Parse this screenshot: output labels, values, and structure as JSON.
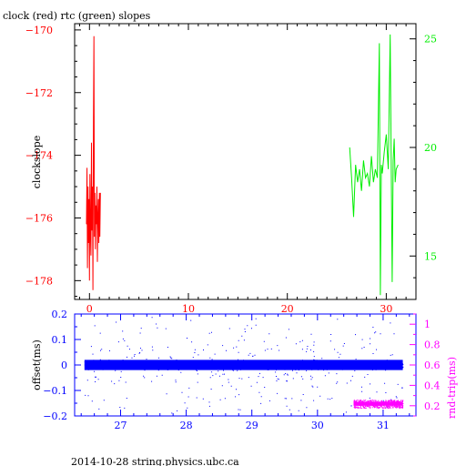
{
  "title": "clock (red) rtc (green) slopes",
  "footer": "2014-10-28 string.physics.ubc.ca",
  "colors": {
    "red": "#ff0000",
    "green": "#00ee00",
    "blue": "#0000ff",
    "magenta": "#ff00ff",
    "black": "#000000"
  },
  "chart_data": [
    {
      "type": "line",
      "ylabel": "clockslope",
      "xlim": [
        -1.5,
        33
      ],
      "ylim": [
        -178.6,
        -169.8
      ],
      "xticks": [
        0,
        10,
        20,
        30
      ],
      "yticks_left": [
        -170,
        -172,
        -174,
        -176,
        -178
      ],
      "right_axis": {
        "ylim": [
          13,
          25.7
        ],
        "yticks": [
          15,
          20,
          25
        ]
      },
      "series": [
        {
          "color": "red",
          "axis": "left",
          "x": [
            -0.3,
            -0.25,
            -0.2,
            -0.15,
            -0.1,
            -0.05,
            0.0,
            0.05,
            0.1,
            0.15,
            0.2,
            0.25,
            0.3,
            0.35,
            0.4,
            0.45,
            0.5,
            0.55,
            0.6,
            0.65,
            0.7,
            0.75,
            0.8,
            0.85,
            0.9,
            0.95,
            1.0,
            1.05,
            1.1
          ],
          "y": [
            -176.2,
            -174.4,
            -177.6,
            -175.0,
            -176.8,
            -175.4,
            -178.0,
            -174.6,
            -176.6,
            -177.2,
            -173.6,
            -176.4,
            -175.0,
            -178.3,
            -172.8,
            -170.2,
            -176.6,
            -175.2,
            -177.0,
            -175.6,
            -176.2,
            -175.0,
            -177.4,
            -176.0,
            -175.4,
            -176.8,
            -175.2,
            -176.6,
            -175.2
          ]
        },
        {
          "color": "green",
          "axis": "right",
          "x": [
            26.3,
            26.5,
            26.7,
            26.9,
            27.1,
            27.3,
            27.5,
            27.7,
            27.9,
            28.1,
            28.3,
            28.5,
            28.7,
            28.9,
            29.1,
            29.3,
            29.4,
            29.5,
            29.6,
            29.8,
            30.0,
            30.2,
            30.4,
            30.6,
            30.7,
            30.8,
            30.9,
            31.0,
            31.2
          ],
          "y": [
            20.0,
            18.6,
            16.8,
            19.2,
            18.4,
            19.0,
            18.0,
            19.4,
            18.6,
            18.8,
            18.2,
            19.6,
            18.4,
            19.0,
            18.6,
            24.8,
            13.2,
            19.2,
            18.8,
            19.8,
            20.6,
            19.0,
            25.2,
            13.8,
            19.4,
            20.4,
            18.4,
            19.0,
            19.2
          ]
        }
      ]
    },
    {
      "type": "scatter",
      "ylabel_left": "offset(ms)",
      "ylabel_right": "rnd-trip(ms)",
      "xlim": [
        26.3,
        31.5
      ],
      "ylim": [
        -0.2,
        0.2
      ],
      "xticks": [
        27,
        28,
        29,
        30,
        31
      ],
      "yticks_left": [
        0.2,
        0.1,
        0,
        -0.1,
        -0.2
      ],
      "right_axis": {
        "ylim": [
          0.1,
          1.1
        ],
        "yticks": [
          1,
          0.8,
          0.6,
          0.4,
          0.2
        ]
      },
      "series": [
        {
          "color": "blue",
          "axis": "left",
          "x_range": [
            26.45,
            31.3
          ],
          "band": [
            -0.02,
            0.02
          ],
          "scatter_spread": [
            -0.18,
            0.19
          ]
        },
        {
          "color": "magenta",
          "axis": "right",
          "x_range": [
            30.55,
            31.3
          ],
          "band": [
            0.18,
            0.26
          ]
        }
      ]
    }
  ]
}
